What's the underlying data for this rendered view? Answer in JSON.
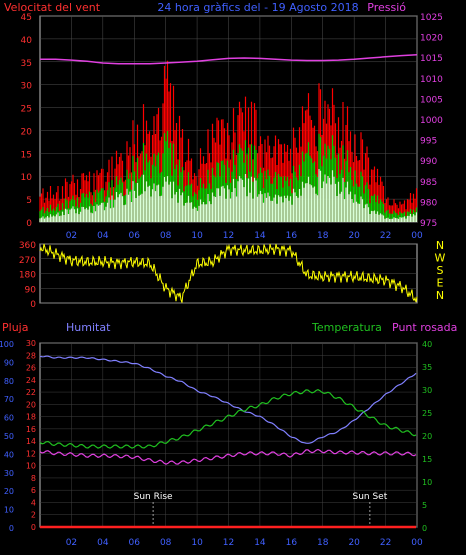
{
  "header": {
    "left_title": "Velocitat del vent",
    "center_title": "24 hora gràfics del - 19 Agosto 2018",
    "right_title": "Pressió"
  },
  "colors": {
    "wind_gust": "#ff0000",
    "wind_avg": "#00d000",
    "wind_low": "#d8ffd8",
    "pressure": "#e040e0",
    "direction": "#ffff00",
    "humidity": "#8080ff",
    "temperature": "#20c020",
    "dewpoint": "#e040e0",
    "rain": "#ff2020",
    "axis_red": "#ff3030",
    "axis_blue": "#4060ff",
    "axis_green": "#20c020",
    "grid": "#c0c0c0"
  },
  "chart_data": [
    {
      "type": "area",
      "title": "24 hora gràfics del - 19 Agosto 2018",
      "ylabel": "Velocitat del vent",
      "y2label": "Pressió",
      "x_ticks": [
        "02",
        "04",
        "06",
        "08",
        "10",
        "12",
        "14",
        "16",
        "18",
        "20",
        "22",
        "00"
      ],
      "ylim": [
        0,
        45
      ],
      "y_ticks": [
        0,
        5,
        10,
        15,
        20,
        25,
        30,
        35,
        40,
        45
      ],
      "y2lim": [
        975,
        1025
      ],
      "y2_ticks": [
        975,
        980,
        985,
        990,
        995,
        1000,
        1005,
        1010,
        1015,
        1020,
        1025
      ],
      "x_hours": [
        0,
        1,
        2,
        3,
        4,
        5,
        6,
        7,
        8,
        9,
        10,
        11,
        12,
        13,
        14,
        15,
        16,
        17,
        18,
        19,
        20,
        21,
        22,
        23,
        24
      ],
      "series": [
        {
          "name": "wind_gust",
          "values": [
            7,
            8,
            9,
            10,
            11,
            14,
            20,
            25,
            32,
            22,
            13,
            20,
            24,
            26,
            22,
            19,
            17,
            26,
            28,
            26,
            22,
            14,
            6,
            4,
            7
          ]
        },
        {
          "name": "wind_avg",
          "values": [
            3,
            4,
            5,
            6,
            7,
            9,
            13,
            17,
            18,
            13,
            8,
            11,
            15,
            17,
            14,
            11,
            10,
            16,
            18,
            17,
            13,
            7,
            3,
            2,
            3
          ]
        },
        {
          "name": "wind_low",
          "values": [
            1,
            2,
            3,
            3,
            4,
            6,
            8,
            10,
            9,
            7,
            4,
            6,
            9,
            10,
            8,
            6,
            6,
            9,
            11,
            10,
            7,
            3,
            1,
            1,
            2
          ]
        },
        {
          "name": "pressure",
          "axis": "y2",
          "values": [
            1014.5,
            1014.5,
            1014.3,
            1014,
            1013.6,
            1013.4,
            1013.4,
            1013.4,
            1013.6,
            1013.8,
            1014,
            1014.4,
            1014.7,
            1014.8,
            1014.7,
            1014.5,
            1014.3,
            1014.2,
            1014.2,
            1014.3,
            1014.5,
            1014.8,
            1015.1,
            1015.4,
            1015.6
          ]
        }
      ]
    },
    {
      "type": "line",
      "ylabel_right": [
        "N",
        "W",
        "S",
        "E",
        "N"
      ],
      "ylim": [
        0,
        360
      ],
      "y_ticks": [
        0,
        90,
        180,
        270,
        360
      ],
      "x_hours": [
        0,
        1,
        2,
        3,
        4,
        5,
        6,
        7,
        8,
        9,
        10,
        11,
        12,
        13,
        14,
        15,
        16,
        17,
        18,
        19,
        20,
        21,
        22,
        23,
        24
      ],
      "series": [
        {
          "name": "wind_direction",
          "values": [
            340,
            300,
            260,
            250,
            250,
            245,
            250,
            240,
            90,
            30,
            240,
            250,
            330,
            320,
            320,
            330,
            320,
            170,
            160,
            165,
            160,
            150,
            140,
            100,
            20
          ]
        }
      ]
    },
    {
      "type": "line",
      "left_label_1": "Pluja",
      "left_label_2": "Humitat",
      "right_label_1": "Temperatura",
      "right_label_2": "Punt rosada",
      "annotations": [
        "Sun Rise",
        "Sun Set"
      ],
      "annotation_hours": [
        7.2,
        21.0
      ],
      "ylim_humidity": [
        0,
        100
      ],
      "humidity_ticks": [
        0,
        10,
        20,
        30,
        40,
        50,
        60,
        70,
        80,
        90,
        100
      ],
      "ylim_rain": [
        0,
        30
      ],
      "rain_ticks": [
        0,
        2,
        4,
        6,
        8,
        10,
        12,
        14,
        16,
        18,
        20,
        22,
        24,
        26,
        28,
        30
      ],
      "ylim_temp": [
        0,
        40
      ],
      "temp_ticks": [
        0,
        5,
        10,
        15,
        20,
        25,
        30,
        35,
        40
      ],
      "x_ticks": [
        "02",
        "04",
        "06",
        "08",
        "10",
        "12",
        "14",
        "16",
        "18",
        "20",
        "22",
        "00"
      ],
      "x_hours": [
        0,
        1,
        2,
        3,
        4,
        5,
        6,
        7,
        8,
        9,
        10,
        11,
        12,
        13,
        14,
        15,
        16,
        17,
        18,
        19,
        20,
        21,
        22,
        23,
        24
      ],
      "series": [
        {
          "name": "humidity",
          "axis": "humidity",
          "values": [
            93,
            92,
            92,
            92,
            91,
            90,
            89,
            86,
            82,
            79,
            74,
            71,
            67,
            63,
            60,
            55,
            49,
            45,
            49,
            52,
            58,
            65,
            72,
            78,
            84
          ]
        },
        {
          "name": "temperature",
          "axis": "temp",
          "values": [
            18.5,
            18,
            17.8,
            17.5,
            17.5,
            17.5,
            17.5,
            17.5,
            18.5,
            19.5,
            21,
            22.5,
            24,
            25.5,
            26.5,
            28,
            29,
            29.5,
            29.5,
            28,
            26,
            24,
            22,
            21,
            20
          ]
        },
        {
          "name": "dewpoint",
          "axis": "temp",
          "values": [
            16.5,
            16,
            15.8,
            15.5,
            15.5,
            15.4,
            15.2,
            14.5,
            14,
            14,
            14.5,
            15,
            15.5,
            16,
            16,
            16,
            15.5,
            16.5,
            16.5,
            16.2,
            16.2,
            16,
            16,
            16,
            15.8
          ]
        },
        {
          "name": "rain",
          "axis": "rain",
          "values": [
            0,
            0,
            0,
            0,
            0,
            0,
            0,
            0,
            0,
            0,
            0,
            0,
            0,
            0,
            0,
            0,
            0,
            0,
            0,
            0,
            0,
            0,
            0,
            0,
            0
          ]
        }
      ]
    }
  ]
}
